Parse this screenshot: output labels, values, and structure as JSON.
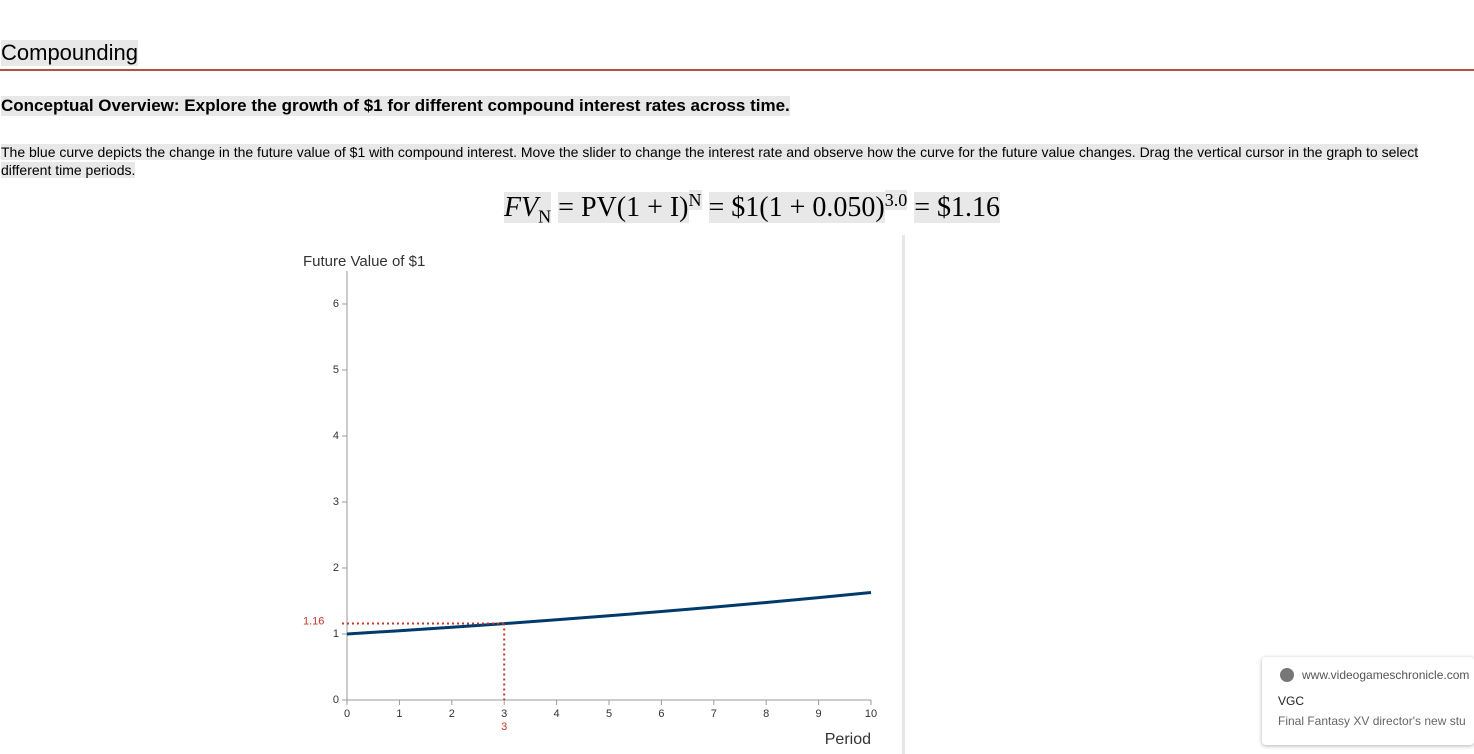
{
  "header": {
    "title": "Compounding"
  },
  "overview": "Conceptual Overview: Explore the growth of $1 for different compound interest rates across time.",
  "description": "The blue curve depicts the change in the future value of $1 with compound interest. Move the slider to change the interest rate and observe how the curve for the future value changes. Drag the vertical cursor in the graph to select different time periods.",
  "formula": {
    "lhs": "FV",
    "lhs_sub": "N",
    "general": "= PV(1 + I)",
    "general_exp": "N",
    "applied": "= $1(1 + 0.050)",
    "applied_exp": "3.0",
    "result": "= $1.16"
  },
  "chart_data": {
    "type": "line",
    "y_label": "Future Value of $1",
    "x_label": "Period",
    "x": [
      0,
      1,
      2,
      3,
      4,
      5,
      6,
      7,
      8,
      9,
      10
    ],
    "series": [
      {
        "name": "Future value",
        "color": "#003a6b",
        "values": [
          1,
          1.05,
          1.1025,
          1.157625,
          1.21551,
          1.276282,
          1.340096,
          1.4071,
          1.477455,
          1.551328,
          1.628895
        ]
      }
    ],
    "xlim": [
      0,
      10
    ],
    "ylim": [
      0,
      6.5
    ],
    "xticks": [
      0,
      1,
      2,
      3,
      4,
      5,
      6,
      7,
      8,
      9,
      10
    ],
    "yticks": [
      0,
      1,
      2,
      3,
      4,
      5,
      6
    ],
    "cursor": {
      "x": 3,
      "value": 1.16,
      "color": "#c0392b"
    }
  },
  "notification": {
    "site": "www.videogameschronicle.com",
    "source": "VGC",
    "headline": "Final Fantasy XV director's new stu"
  }
}
